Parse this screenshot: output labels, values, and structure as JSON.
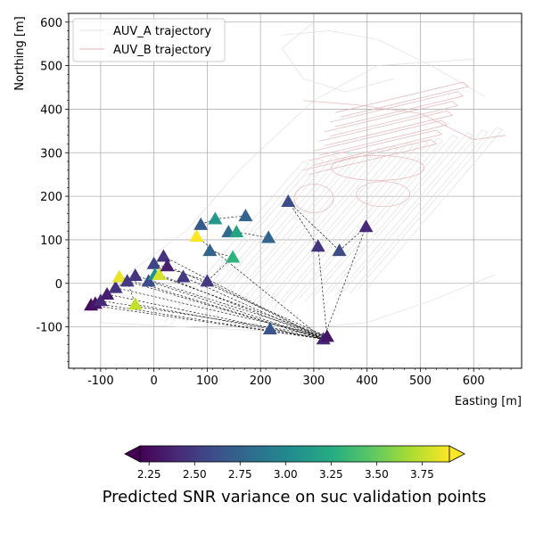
{
  "chart_data": {
    "type": "scatter",
    "xlabel": "Easting [m]",
    "ylabel": "Northing [m]",
    "xlim": [
      -160,
      690
    ],
    "ylim": [
      -195,
      620
    ],
    "xticks": [
      -100,
      0,
      100,
      200,
      300,
      400,
      500,
      600
    ],
    "yticks": [
      -100,
      0,
      100,
      200,
      300,
      400,
      500,
      600
    ],
    "xtick_labels": [
      "-100",
      "0",
      "100",
      "200",
      "300",
      "400",
      "500",
      "600"
    ],
    "ytick_labels": [
      "-100",
      "0",
      "100",
      "200",
      "300",
      "400",
      "500",
      "600"
    ],
    "grid": true,
    "legend": {
      "placement": "top-left",
      "entries": [
        {
          "label": "AUV_A trajectory",
          "color": "#e0e0e0"
        },
        {
          "label": "AUV_B trajectory",
          "color": "#e6b4b4"
        }
      ]
    },
    "colorbar": {
      "label": "Predicted SNR variance on suc validation points",
      "cmap": "viridis",
      "range": [
        2.2,
        3.9
      ],
      "ticks": [
        2.25,
        2.5,
        2.75,
        3.0,
        3.25,
        3.5,
        3.75
      ],
      "tick_labels": [
        "2.25",
        "2.50",
        "2.75",
        "3.00",
        "3.25",
        "3.50",
        "3.75"
      ],
      "extend": "both"
    },
    "points": [
      {
        "x": -118,
        "y": -50,
        "v": 2.25
      },
      {
        "x": -110,
        "y": -46,
        "v": 2.3
      },
      {
        "x": -100,
        "y": -40,
        "v": 2.4
      },
      {
        "x": -88,
        "y": -25,
        "v": 2.35
      },
      {
        "x": -72,
        "y": -10,
        "v": 2.45
      },
      {
        "x": -65,
        "y": 15,
        "v": 3.85
      },
      {
        "x": -50,
        "y": 5,
        "v": 2.5
      },
      {
        "x": -35,
        "y": 18,
        "v": 2.45
      },
      {
        "x": -35,
        "y": -48,
        "v": 3.75
      },
      {
        "x": -10,
        "y": 5,
        "v": 2.6
      },
      {
        "x": 0,
        "y": 45,
        "v": 2.55
      },
      {
        "x": 2,
        "y": 20,
        "v": 3.05
      },
      {
        "x": 10,
        "y": 20,
        "v": 3.8
      },
      {
        "x": 18,
        "y": 62,
        "v": 2.45
      },
      {
        "x": 25,
        "y": 40,
        "v": 2.35
      },
      {
        "x": 55,
        "y": 15,
        "v": 2.5
      },
      {
        "x": 80,
        "y": 108,
        "v": 3.9
      },
      {
        "x": 88,
        "y": 135,
        "v": 2.7
      },
      {
        "x": 100,
        "y": 5,
        "v": 2.5
      },
      {
        "x": 105,
        "y": 75,
        "v": 2.75
      },
      {
        "x": 115,
        "y": 148,
        "v": 3.1
      },
      {
        "x": 140,
        "y": 118,
        "v": 2.8
      },
      {
        "x": 148,
        "y": 60,
        "v": 3.3
      },
      {
        "x": 155,
        "y": 118,
        "v": 3.2
      },
      {
        "x": 172,
        "y": 155,
        "v": 2.75
      },
      {
        "x": 215,
        "y": 105,
        "v": 2.75
      },
      {
        "x": 218,
        "y": -105,
        "v": 2.65
      },
      {
        "x": 252,
        "y": 188,
        "v": 2.6
      },
      {
        "x": 308,
        "y": 85,
        "v": 2.45
      },
      {
        "x": 318,
        "y": -128,
        "v": 2.4
      },
      {
        "x": 325,
        "y": -122,
        "v": 2.3
      },
      {
        "x": 348,
        "y": 75,
        "v": 2.6
      },
      {
        "x": 398,
        "y": 130,
        "v": 2.4
      }
    ],
    "links": [
      [
        0,
        29
      ],
      [
        1,
        29
      ],
      [
        2,
        30
      ],
      [
        3,
        29
      ],
      [
        4,
        30
      ],
      [
        5,
        29
      ],
      [
        6,
        29
      ],
      [
        7,
        30
      ],
      [
        8,
        29
      ],
      [
        9,
        29
      ],
      [
        11,
        30
      ],
      [
        12,
        29
      ],
      [
        13,
        29
      ],
      [
        14,
        30
      ],
      [
        15,
        29
      ],
      [
        18,
        29
      ],
      [
        16,
        29
      ],
      [
        17,
        20
      ],
      [
        20,
        24
      ],
      [
        19,
        22
      ],
      [
        21,
        23
      ],
      [
        22,
        18
      ],
      [
        26,
        29
      ],
      [
        27,
        28
      ],
      [
        27,
        31
      ],
      [
        28,
        30
      ],
      [
        10,
        13
      ],
      [
        13,
        14
      ],
      [
        9,
        11
      ],
      [
        4,
        6
      ],
      [
        6,
        8
      ],
      [
        31,
        32
      ],
      [
        32,
        29
      ],
      [
        23,
        25
      ],
      [
        10,
        18
      ]
    ]
  }
}
